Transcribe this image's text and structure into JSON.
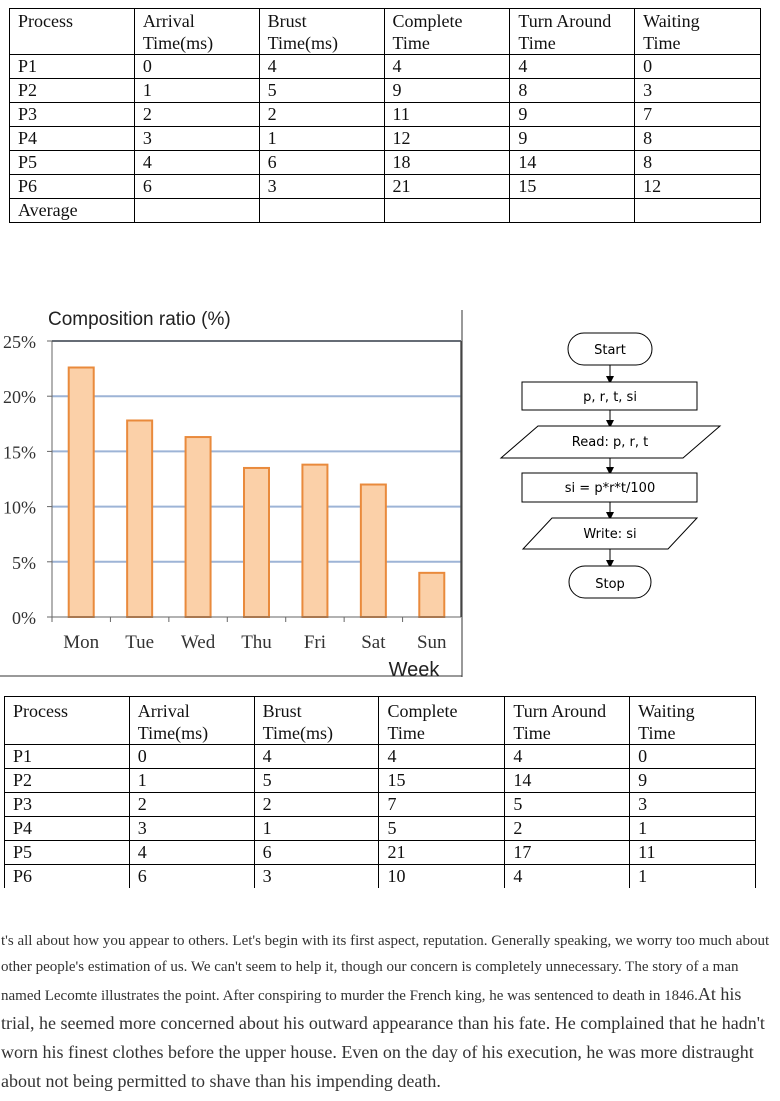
{
  "table1": {
    "headers": [
      [
        "Process"
      ],
      [
        "Arrival",
        "Time(ms)"
      ],
      [
        "Brust",
        "Time(ms)"
      ],
      [
        "Complete",
        "Time"
      ],
      [
        "Turn Around",
        "Time"
      ],
      [
        "Waiting",
        "Time"
      ]
    ],
    "rows": [
      [
        "P1",
        "0",
        "4",
        "4",
        "4",
        "0"
      ],
      [
        "P2",
        "1",
        "5",
        "9",
        "8",
        "3"
      ],
      [
        "P3",
        "2",
        "2",
        "11",
        "9",
        "7"
      ],
      [
        "P4",
        "3",
        "1",
        "12",
        "9",
        "8"
      ],
      [
        "P5",
        "4",
        "6",
        "18",
        "14",
        "8"
      ],
      [
        "P6",
        "6",
        "3",
        "21",
        "15",
        "12"
      ],
      [
        "Average",
        "",
        "",
        "",
        "",
        ""
      ]
    ]
  },
  "chart_data": {
    "type": "bar",
    "title": "Composition ratio (%)",
    "xlabel": "Week",
    "ylabel": "",
    "categories": [
      "Mon",
      "Tue",
      "Wed",
      "Thu",
      "Fri",
      "Sat",
      "Sun"
    ],
    "values": [
      22.6,
      17.8,
      16.3,
      13.5,
      13.8,
      12.0,
      4.0
    ],
    "ylim": [
      0,
      25
    ],
    "yticks": [
      "0%",
      "5%",
      "10%",
      "15%",
      "20%",
      "25%"
    ],
    "grid": true,
    "colors": {
      "bar_fill": "#fbd0a8",
      "bar_stroke": "#e98a3c",
      "grid": "#9db4d6"
    }
  },
  "flowchart": {
    "nodes": [
      {
        "label": "Start",
        "shape": "terminal"
      },
      {
        "label": "p, r, t, si",
        "shape": "process"
      },
      {
        "label": "Read: p, r, t",
        "shape": "io"
      },
      {
        "label": "si = p*r*t/100",
        "shape": "process"
      },
      {
        "label": "Write: si",
        "shape": "io"
      },
      {
        "label": "Stop",
        "shape": "terminal"
      }
    ]
  },
  "table2": {
    "headers": [
      [
        "Process"
      ],
      [
        "Arrival",
        "Time(ms)"
      ],
      [
        "Brust",
        "Time(ms)"
      ],
      [
        "Complete",
        "Time"
      ],
      [
        "Turn Around",
        "Time"
      ],
      [
        "Waiting",
        "Time"
      ]
    ],
    "rows": [
      [
        "P1",
        "0",
        "4",
        "4",
        "4",
        "0"
      ],
      [
        "P2",
        "1",
        "5",
        "15",
        "14",
        "9"
      ],
      [
        "P3",
        "2",
        "2",
        "7",
        "5",
        "3"
      ],
      [
        "P4",
        "3",
        "1",
        "5",
        "2",
        "1"
      ],
      [
        "P5",
        "4",
        "6",
        "21",
        "17",
        "11"
      ],
      [
        "P6",
        "6",
        "3",
        "10",
        "4",
        "1"
      ]
    ]
  },
  "passage": {
    "part1": "t's all about how you appear to others. Let's begin with its first aspect, reputation. Generally speaking, we worry too much about other people's estimation of us. We can't seem to help it, though our concern is completely unnecessary. The story of a man named Lecomte illustrates the point. After conspiring to murder the French king, he was sentenced to death in 1846.",
    "part2": "At his trial, he seemed more concerned about his outward appearance than his fate. He complained that he hadn't worn his finest clothes before the upper house. Even on the day of his execution, he was more distraught about not being permitted to shave than his impending death."
  }
}
